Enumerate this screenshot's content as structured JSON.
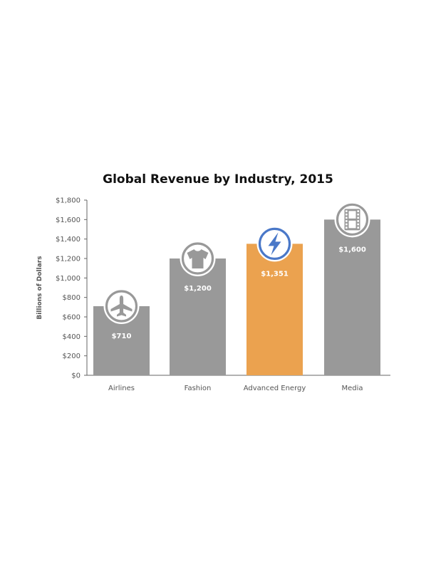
{
  "chart_data": {
    "type": "bar",
    "title": "Global Revenue by Industry, 2015",
    "ylabel": "Billions of Dollars",
    "xlabel": "",
    "ylim": [
      0,
      1800
    ],
    "ytick_values": [
      0,
      200,
      400,
      600,
      800,
      1000,
      1200,
      1400,
      1600,
      1800
    ],
    "ytick_labels": [
      "$0",
      "$200",
      "$400",
      "$600",
      "$800",
      "$1,000",
      "$1,200",
      "$1,400",
      "$1,600",
      "$1,800"
    ],
    "categories": [
      "Airlines",
      "Fashion",
      "Advanced Energy",
      "Media"
    ],
    "values": [
      710,
      1200,
      1351,
      1600
    ],
    "value_labels": [
      "$710",
      "$1,200",
      "$1,351",
      "$1,600"
    ],
    "icons": [
      "airplane-icon",
      "tshirt-icon",
      "lightning-bolt-icon",
      "film-strip-icon"
    ],
    "bar_colors": [
      "#999999",
      "#999999",
      "#EBA24F",
      "#999999"
    ],
    "icon_colors": [
      "#999999",
      "#999999",
      "#4A78C8",
      "#999999"
    ],
    "grid": false,
    "legend": "none"
  }
}
